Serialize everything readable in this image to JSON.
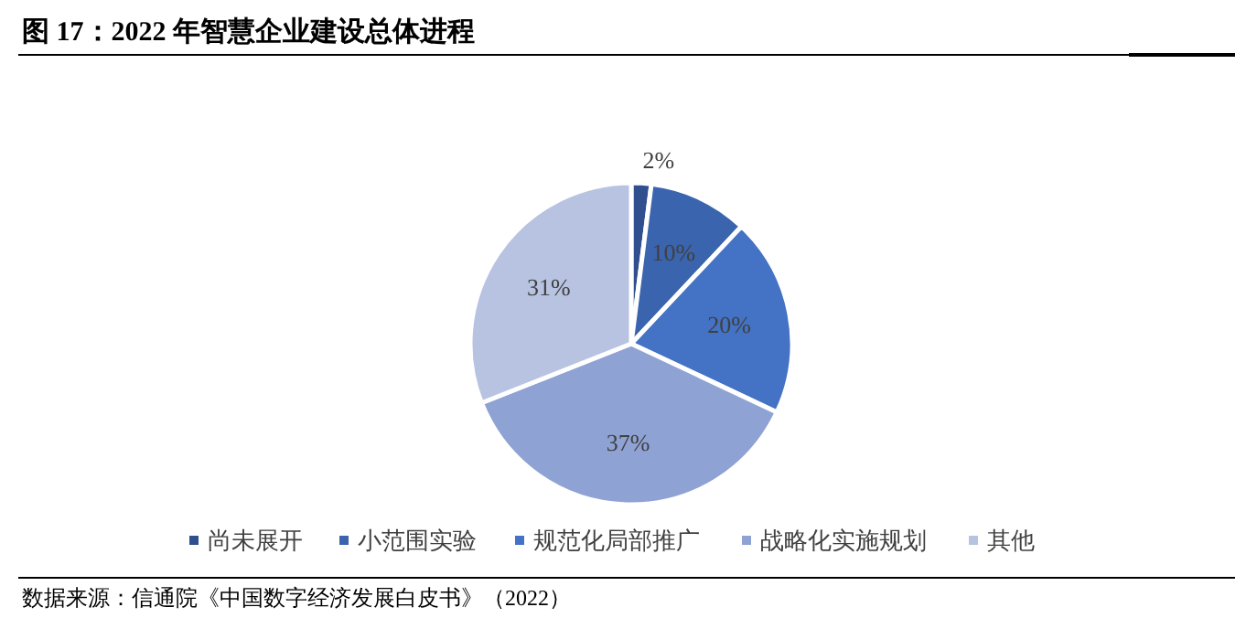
{
  "chart_data": {
    "type": "pie",
    "title": "图 17：2022 年智慧企业建设总体进程",
    "categories": [
      "尚未展开",
      "小范围实验",
      "规范化局部推广",
      "战略化实施规划",
      "其他"
    ],
    "values": [
      2,
      10,
      20,
      37,
      31
    ],
    "colors": [
      "#2f4f8f",
      "#3a64ad",
      "#4472c4",
      "#8fa2d4",
      "#b7c3e1"
    ],
    "value_labels": [
      "2%",
      "10%",
      "20%",
      "37%",
      "31%"
    ],
    "legend": "bottom",
    "annotations": [
      "数据来源：信通院《中国数字经济发展白皮书》（2022）"
    ]
  }
}
